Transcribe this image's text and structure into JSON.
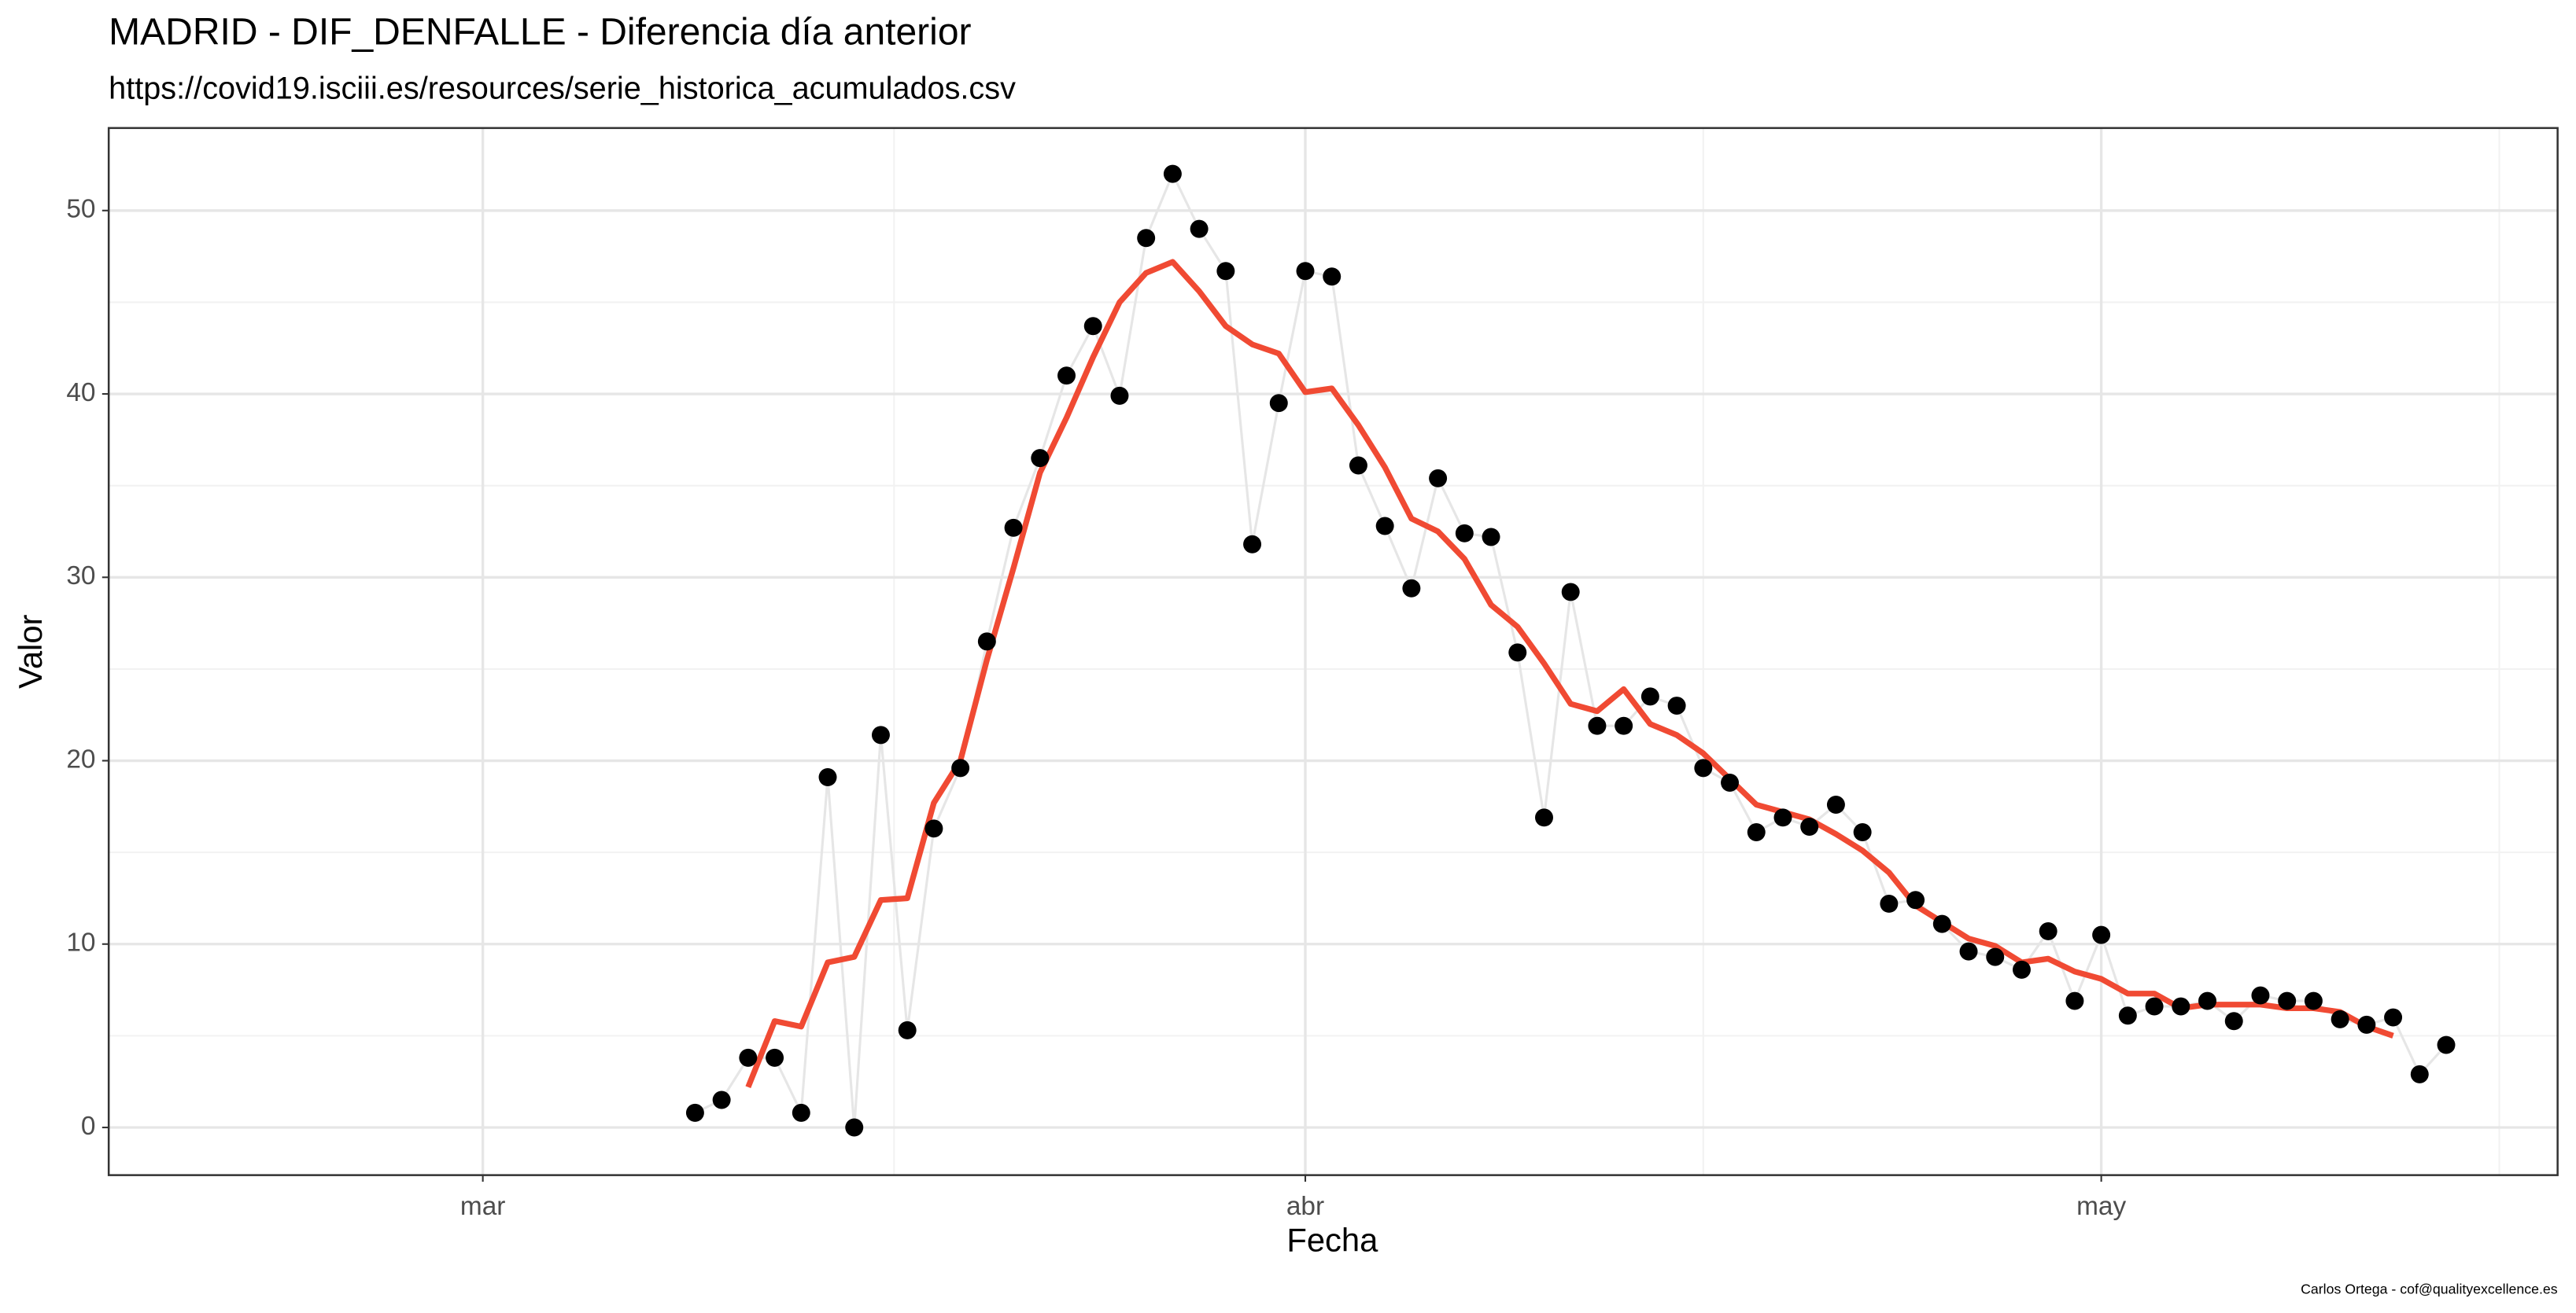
{
  "chart_data": {
    "type": "scatter",
    "title": "MADRID - DIF_DENFALLE - Diferencia día anterior",
    "subtitle": "https://covid19.isciii.es/resources/serie_historica_acumulados.csv",
    "x_label": "Fecha",
    "y_label": "Valor",
    "caption": "Carlos Ortega - cof@qualityexcellence.es",
    "x": [
      8,
      9,
      10,
      11,
      12,
      13,
      14,
      15,
      16,
      17,
      18,
      19,
      20,
      21,
      22,
      23,
      24,
      25,
      26,
      27,
      28,
      29,
      30,
      31,
      32,
      33,
      34,
      35,
      36,
      37,
      38,
      39,
      40,
      41,
      42,
      43,
      44,
      45,
      46,
      47,
      48,
      49,
      50,
      51,
      52,
      53,
      54,
      55,
      56,
      57,
      58,
      59,
      60,
      61,
      62,
      63,
      64,
      65,
      66,
      67,
      68,
      69,
      70,
      71,
      72,
      73,
      74
    ],
    "series": [
      {
        "color": "#000000",
        "line_color": "#e6e6e6",
        "style": "points",
        "values": [
          0.8,
          1.5,
          3.8,
          3.8,
          0.8,
          19.1,
          0.0,
          21.4,
          5.3,
          16.3,
          19.6,
          26.5,
          32.7,
          36.5,
          41.0,
          43.7,
          39.9,
          48.5,
          52.0,
          49.0,
          46.7,
          31.8,
          39.5,
          46.7,
          46.4,
          36.1,
          32.8,
          29.4,
          35.4,
          32.4,
          32.2,
          25.9,
          16.9,
          29.2,
          21.9,
          21.9,
          23.5,
          23.0,
          19.6,
          18.8,
          16.1,
          16.9,
          16.4,
          17.6,
          16.1,
          12.2,
          12.4,
          11.1,
          9.6,
          9.3,
          8.6,
          10.7,
          6.9,
          10.5,
          6.1,
          6.6,
          6.6,
          6.9,
          5.8,
          7.2,
          6.9,
          6.9,
          5.9,
          5.6,
          6.0,
          2.9,
          4.5
        ]
      },
      {
        "color": "#f04a33",
        "style": "line",
        "values": [
          null,
          null,
          2.2,
          5.8,
          5.5,
          9.0,
          9.3,
          12.4,
          12.5,
          17.7,
          20.0,
          25.5,
          30.5,
          35.7,
          38.7,
          42.0,
          45.0,
          46.6,
          47.2,
          45.6,
          43.7,
          42.7,
          42.2,
          40.1,
          40.3,
          38.3,
          36.0,
          33.2,
          32.5,
          31.0,
          28.5,
          27.3,
          25.3,
          23.1,
          22.7,
          23.9,
          22.0,
          21.4,
          20.4,
          19.0,
          17.6,
          17.2,
          16.8,
          16.0,
          15.1,
          13.9,
          12.1,
          11.2,
          10.3,
          9.9,
          9.0,
          9.2,
          8.5,
          8.1,
          7.3,
          7.3,
          6.5,
          6.7,
          6.7,
          6.7,
          6.5,
          6.5,
          6.3,
          5.5,
          5.0,
          null,
          null
        ]
      }
    ],
    "xlim": [
      -14.1,
      78.2
    ],
    "xticks": [
      {
        "value": 0,
        "label": "mar"
      },
      {
        "value": 31,
        "label": "abr"
      },
      {
        "value": 61,
        "label": "may"
      }
    ],
    "x_minor_ticks": [
      15.5,
      46,
      76
    ],
    "ylim": [
      -2.6,
      54.5
    ],
    "yticks": [
      0,
      10,
      20,
      30,
      40,
      50
    ],
    "y_minor_ticks": [
      5,
      15,
      25,
      35,
      45
    ],
    "grid": true
  }
}
